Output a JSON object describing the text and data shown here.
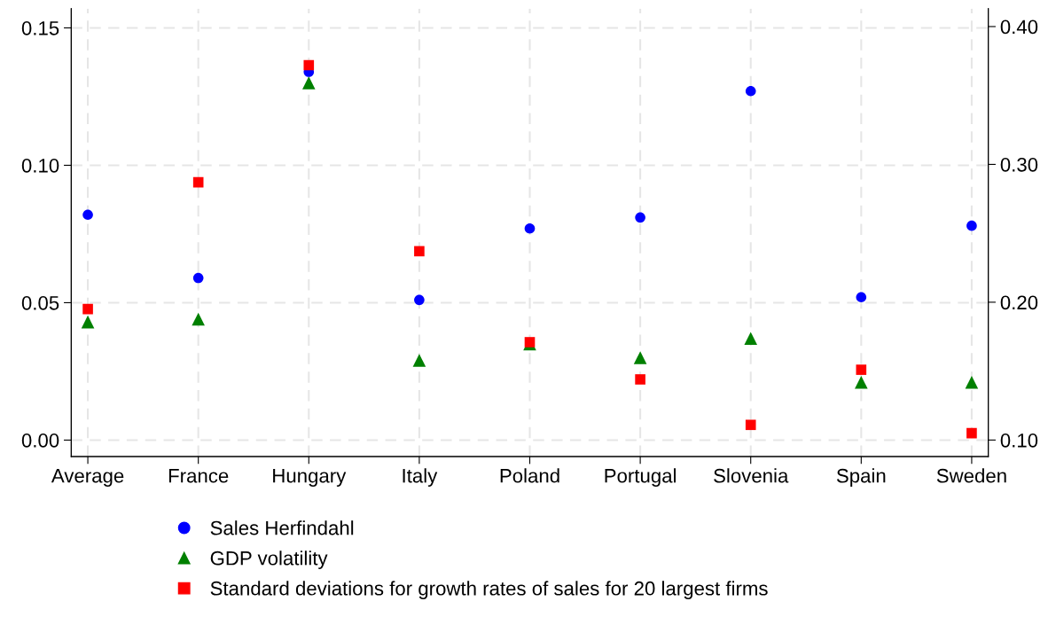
{
  "chart_data": {
    "type": "scatter",
    "categories": [
      "Average",
      "France",
      "Hungary",
      "Italy",
      "Poland",
      "Portugal",
      "Slovenia",
      "Spain",
      "Sweden"
    ],
    "series": [
      {
        "name": "Sales Herfindahl",
        "color": "#0000ff",
        "marker": "circle",
        "values": [
          0.082,
          0.059,
          0.134,
          0.051,
          0.077,
          0.081,
          0.127,
          0.052,
          0.078
        ]
      },
      {
        "name": "GDP volatility",
        "color": "#008000",
        "marker": "triangle",
        "values": [
          0.043,
          0.044,
          0.13,
          0.029,
          0.035,
          0.03,
          0.037,
          0.021,
          0.021
        ]
      },
      {
        "name": "Standard deviations for growth rates of sales for 20 largest firms",
        "color": "#ff0000",
        "marker": "square",
        "axis": "y2",
        "values": [
          0.195,
          0.287,
          0.372,
          0.237,
          0.171,
          0.144,
          0.111,
          0.151,
          0.105
        ]
      }
    ],
    "ylim": [
      -0.006,
      0.157
    ],
    "yticks": [
      {
        "value": 0,
        "label": "0.00"
      },
      {
        "value": 0.05,
        "label": "0.05"
      },
      {
        "value": 0.1,
        "label": "0.10"
      },
      {
        "value": 0.15,
        "label": "0.15"
      }
    ],
    "y2lim": [
      0.088,
      0.413
    ],
    "y2ticks": [
      {
        "value": 0.1,
        "label": "0.10"
      },
      {
        "value": 0.2,
        "label": "0.20"
      },
      {
        "value": 0.3,
        "label": "0.30"
      },
      {
        "value": 0.4,
        "label": "0.40"
      }
    ],
    "grid": true,
    "legend": "bottom"
  }
}
